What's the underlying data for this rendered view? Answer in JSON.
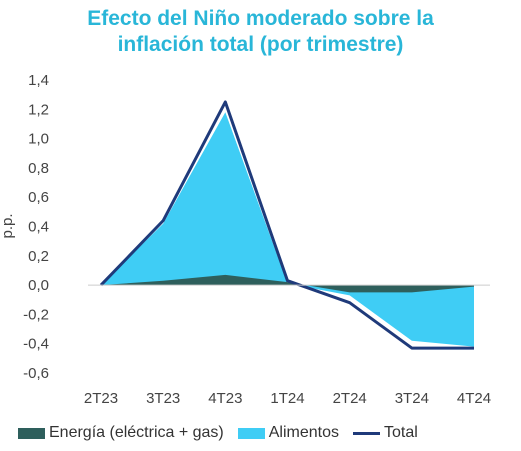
{
  "chart_data": {
    "type": "area",
    "title_lines": [
      "Efecto del Niño moderado sobre la",
      "inflación total (por trimestre)"
    ],
    "ylabel": "p.p.",
    "categories": [
      "2T23",
      "3T23",
      "4T23",
      "1T24",
      "2T24",
      "3T24",
      "4T24"
    ],
    "ylim": [
      -0.6,
      1.4
    ],
    "yticks": [
      "1,4",
      "1,2",
      "1,0",
      "0,8",
      "0,6",
      "0,4",
      "0,2",
      "0,0",
      "-0,2",
      "-0,4",
      "-0,6"
    ],
    "ytick_values": [
      1.4,
      1.2,
      1.0,
      0.8,
      0.6,
      0.4,
      0.2,
      0.0,
      -0.2,
      -0.4,
      -0.6
    ],
    "series": [
      {
        "name": "Energía (eléctrica + gas)",
        "kind": "area",
        "color": "#2e5f5c",
        "values": [
          0.0,
          0.03,
          0.07,
          0.02,
          -0.05,
          -0.05,
          -0.01
        ]
      },
      {
        "name": "Alimentos",
        "kind": "area",
        "color": "#3fcdf5",
        "values": [
          0.0,
          0.42,
          1.18,
          0.01,
          -0.07,
          -0.38,
          -0.42
        ]
      },
      {
        "name": "Total",
        "kind": "line",
        "color": "#1f3a7a",
        "values": [
          0.0,
          0.44,
          1.25,
          0.03,
          -0.12,
          -0.43,
          -0.43
        ]
      }
    ],
    "grid": false,
    "legend_position": "bottom"
  }
}
